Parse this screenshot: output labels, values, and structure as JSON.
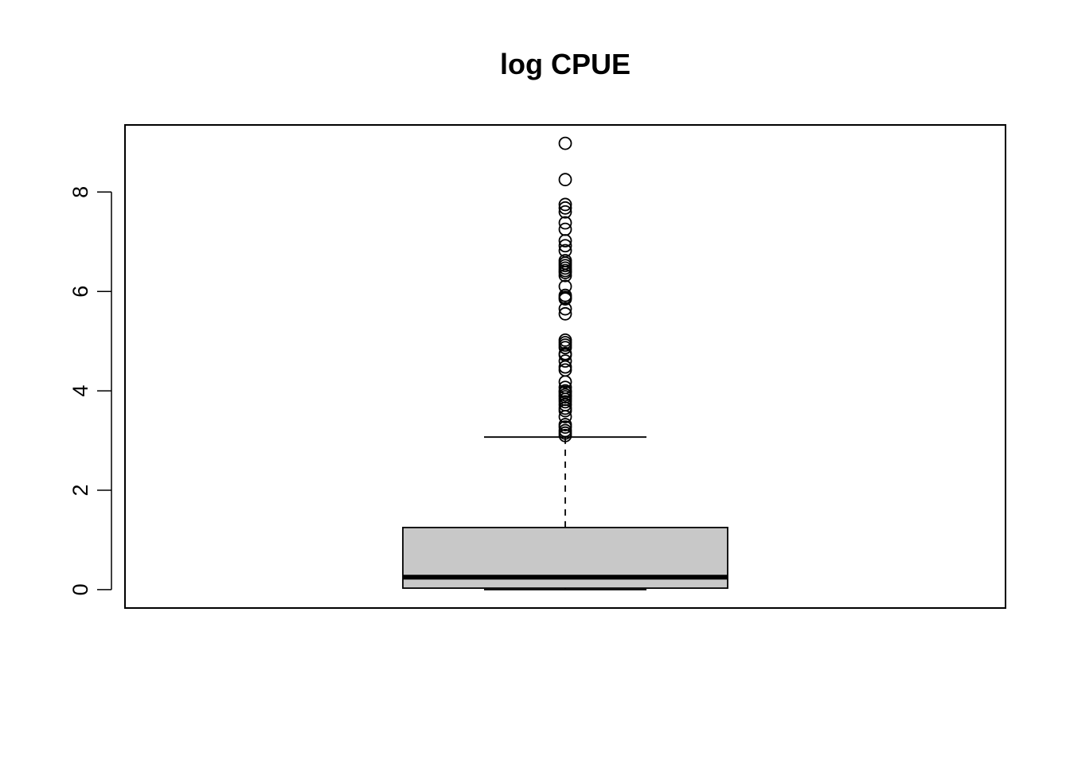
{
  "chart_data": {
    "type": "box",
    "title": "log CPUE",
    "xlabel": "",
    "ylabel": "",
    "ylim": [
      -0.37,
      9.35
    ],
    "y_ticks": [
      0,
      2,
      4,
      6,
      8
    ],
    "y_tick_labels": [
      "0",
      "2",
      "4",
      "6",
      "8"
    ],
    "box": {
      "min": 0.0,
      "q1": 0.03,
      "median": 0.25,
      "q3": 1.25,
      "upper_whisker": 3.07
    },
    "outliers": [
      8.98,
      8.25,
      7.75,
      7.68,
      7.6,
      7.38,
      7.25,
      7.02,
      6.92,
      6.82,
      6.62,
      6.57,
      6.52,
      6.47,
      6.42,
      6.38,
      6.32,
      6.1,
      5.92,
      5.88,
      5.85,
      5.65,
      5.55,
      5.02,
      4.97,
      4.92,
      4.87,
      4.75,
      4.72,
      4.6,
      4.48,
      4.42,
      4.18,
      4.07,
      4.0,
      3.97,
      3.92,
      3.88,
      3.83,
      3.78,
      3.72,
      3.65,
      3.6,
      3.48,
      3.32,
      3.27,
      3.2,
      3.15,
      3.1
    ],
    "colors": {
      "box_fill": "#c8c8c8",
      "stroke": "#000000",
      "background": "#ffffff"
    },
    "grid": false,
    "legend": "none"
  }
}
